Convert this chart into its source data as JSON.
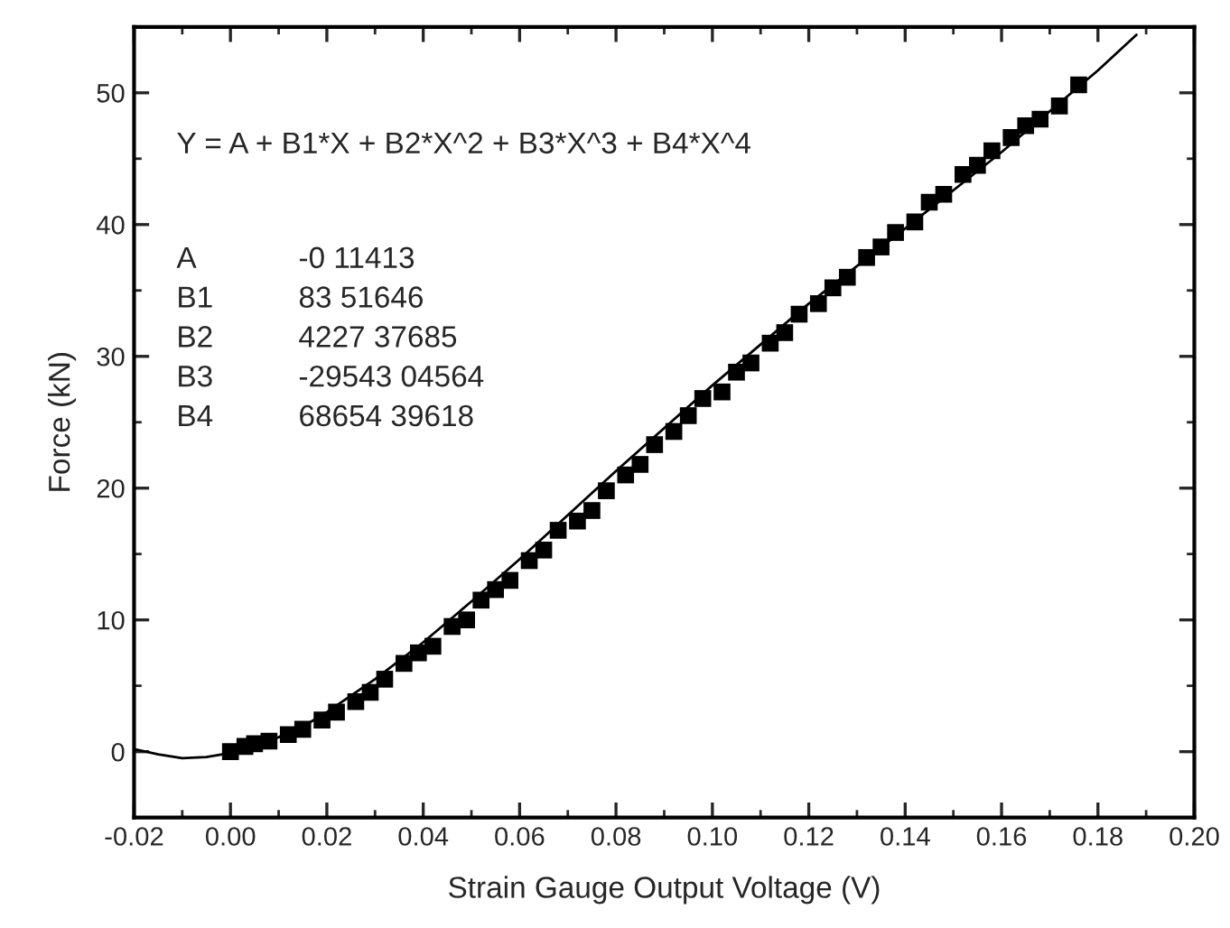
{
  "chart_data": {
    "type": "scatter",
    "xlabel": "Strain Gauge Output Voltage (V)",
    "ylabel": "Force (kN)",
    "xlim": [
      -0.02,
      0.2
    ],
    "ylim": [
      -5,
      55
    ],
    "xticks": [
      {
        "value": -0.02,
        "label": "-0.02"
      },
      {
        "value": 0,
        "label": "0.00"
      },
      {
        "value": 0.02,
        "label": "0.02"
      },
      {
        "value": 0.04,
        "label": "0.04"
      },
      {
        "value": 0.06,
        "label": "0.06"
      },
      {
        "value": 0.08,
        "label": "0.08"
      },
      {
        "value": 0.1,
        "label": "0.10"
      },
      {
        "value": 0.12,
        "label": "0.12"
      },
      {
        "value": 0.14,
        "label": "0.14"
      },
      {
        "value": 0.16,
        "label": "0.16"
      },
      {
        "value": 0.18,
        "label": "0.18"
      },
      {
        "value": 0.2,
        "label": "0.20"
      }
    ],
    "yticks": [
      0,
      10,
      20,
      30,
      40,
      50
    ],
    "grid": false,
    "legend": false,
    "marker": "square",
    "series": [
      {
        "color": "#000000",
        "x": [
          0,
          0.003,
          0.005,
          0.008,
          0.012,
          0.015,
          0.019,
          0.022,
          0.026,
          0.029,
          0.032,
          0.036,
          0.039,
          0.042,
          0.046,
          0.049,
          0.052,
          0.055,
          0.058,
          0.062,
          0.065,
          0.068,
          0.072,
          0.075,
          0.078,
          0.082,
          0.085,
          0.088,
          0.092,
          0.095,
          0.098,
          0.102,
          0.105,
          0.108,
          0.112,
          0.115,
          0.118,
          0.122,
          0.125,
          0.128,
          0.132,
          0.135,
          0.138,
          0.142,
          0.145,
          0.148,
          0.152,
          0.155,
          0.158,
          0.162,
          0.165,
          0.168,
          0.172,
          0.176
        ],
        "values": [
          0,
          0.4,
          0.6,
          0.8,
          1.3,
          1.7,
          2.4,
          3.0,
          3.8,
          4.5,
          5.5,
          6.7,
          7.5,
          8.0,
          9.5,
          10.0,
          11.5,
          12.3,
          13.0,
          14.5,
          15.3,
          16.8,
          17.5,
          18.3,
          19.8,
          21.0,
          21.8,
          23.3,
          24.3,
          25.5,
          26.8,
          27.3,
          28.8,
          29.5,
          31.0,
          31.8,
          33.2,
          34.0,
          35.2,
          36.0,
          37.5,
          38.3,
          39.4,
          40.2,
          41.7,
          42.3,
          43.8,
          44.5,
          45.6,
          46.6,
          47.5,
          48.0,
          49.0,
          50.6
        ]
      },
      {
        "type": "line",
        "color": "#000000",
        "line_style": "solid",
        "marker": "none",
        "x": [
          -0.02,
          -0.015,
          -0.01,
          -0.005,
          0,
          0.005,
          0.01,
          0.015,
          0.02,
          0.03,
          0.04,
          0.05,
          0.06,
          0.08,
          0.1,
          0.12,
          0.14,
          0.16,
          0.18,
          0.188
        ],
        "values": [
          0.2,
          -0.2,
          -0.5,
          -0.4,
          -0.1,
          0.4,
          1.1,
          1.9,
          3.0,
          5.5,
          8.3,
          11.4,
          14.6,
          21.3,
          27.8,
          34.0,
          39.7,
          45.5,
          51.7,
          54.4
        ]
      }
    ],
    "annotations": [
      "Y = A + B1*X + B2*X^2 + B3*X^3 + B4*X^4",
      "A",
      "-0 11413",
      "B1",
      "83 51646",
      "B2",
      "4227 37685",
      "B3",
      "-29543 04564",
      "B4",
      "68654 39618"
    ]
  }
}
